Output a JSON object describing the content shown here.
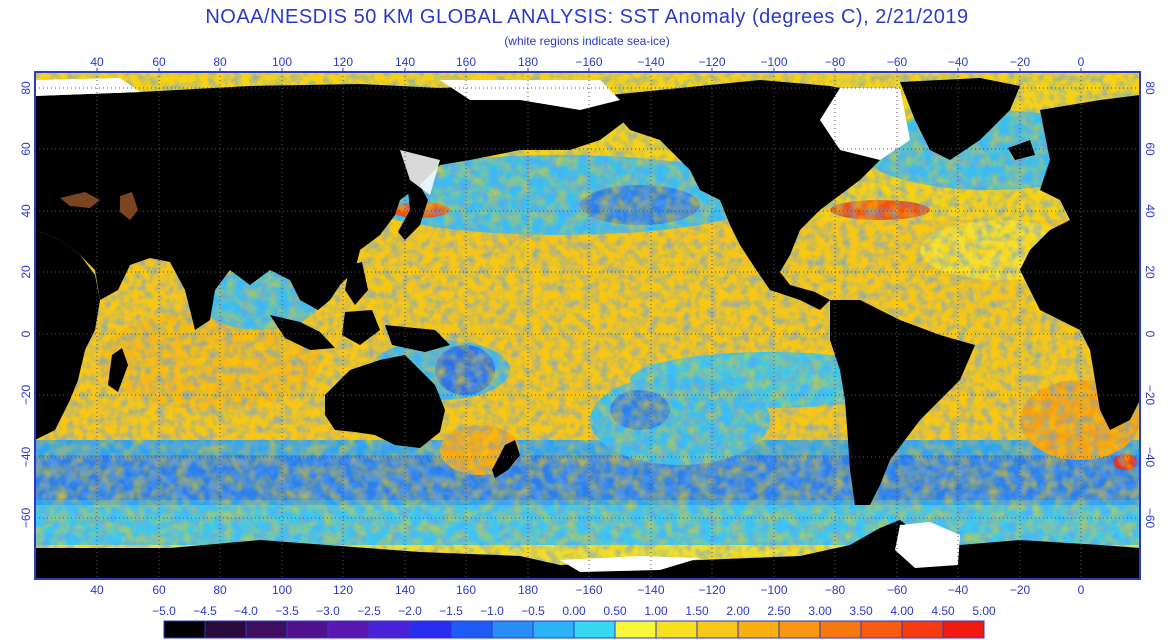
{
  "header": {
    "title": "NOAA/NESDIS 50 KM GLOBAL ANALYSIS: SST Anomaly (degrees C), 2/21/2019",
    "subtitle": "(white regions indicate sea-ice)"
  },
  "map": {
    "top_lon_labels": [
      "40",
      "60",
      "80",
      "100",
      "120",
      "140",
      "160",
      "180",
      "−160",
      "−140",
      "−120",
      "−100",
      "−80",
      "−60",
      "−40",
      "−20",
      "0"
    ],
    "bottom_lon_labels": [
      "40",
      "60",
      "80",
      "100",
      "120",
      "140",
      "160",
      "180",
      "−160",
      "−140",
      "−120",
      "−100",
      "−80",
      "−60",
      "−40",
      "−20",
      "0"
    ],
    "left_lat_labels": [
      "80",
      "60",
      "40",
      "20",
      "0",
      "−20",
      "−40",
      "−60"
    ],
    "right_lat_labels": [
      "80",
      "60",
      "40",
      "20",
      "0",
      "−20",
      "−40",
      "−60"
    ],
    "colors": {
      "frame": "#2b39c9",
      "land": "#000000",
      "ice": "#ffffff",
      "grid": "#555555"
    }
  },
  "colorbar": {
    "labels": [
      "−5.0",
      "−4.5",
      "−4.0",
      "−3.5",
      "−3.0",
      "−2.5",
      "−2.0",
      "−1.5",
      "−1.0",
      "−0.5",
      "0.00",
      "0.50",
      "1.00",
      "1.50",
      "2.00",
      "2.50",
      "3.00",
      "3.50",
      "4.00",
      "4.50",
      "5.00"
    ],
    "colors": [
      "#000000",
      "#2a0a3a",
      "#3e0f5e",
      "#50128a",
      "#5a17b0",
      "#4a22d8",
      "#2a2cf0",
      "#1f5cf5",
      "#2a8cf5",
      "#2ab4f5",
      "#38d8f0",
      "#f8f838",
      "#f8e020",
      "#f8c818",
      "#f8b010",
      "#f89810",
      "#f87810",
      "#f85a10",
      "#f83a10",
      "#f01a10"
    ]
  }
}
